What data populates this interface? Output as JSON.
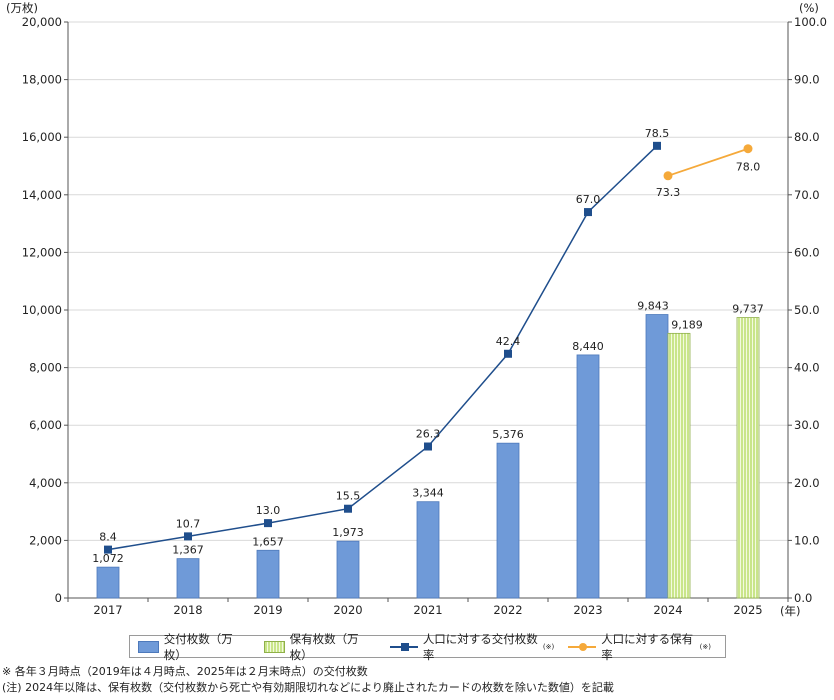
{
  "chart_data": {
    "type": "bar",
    "categories": [
      "2017",
      "2018",
      "2019",
      "2020",
      "2021",
      "2022",
      "2023",
      "2024",
      "2025"
    ],
    "x_unit": "(年)",
    "left_axis": {
      "unit": "(万枚)",
      "min": 0,
      "max": 20000,
      "step": 2000,
      "ticks": [
        "0",
        "2,000",
        "4,000",
        "6,000",
        "8,000",
        "10,000",
        "12,000",
        "14,000",
        "16,000",
        "18,000",
        "20,000"
      ]
    },
    "right_axis": {
      "unit": "(%)",
      "min": 0,
      "max": 100,
      "step": 10,
      "ticks": [
        "0.0",
        "10.0",
        "20.0",
        "30.0",
        "40.0",
        "50.0",
        "60.0",
        "70.0",
        "80.0",
        "90.0",
        "100.0"
      ]
    },
    "series": [
      {
        "name": "交付枚数（万枚）",
        "kind": "bar",
        "axis": "left",
        "color": "#6f9ad8",
        "values": [
          1072,
          1367,
          1657,
          1973,
          3344,
          5376,
          8440,
          9843,
          null
        ],
        "labels": [
          "1,072",
          "1,367",
          "1,657",
          "1,973",
          "3,344",
          "5,376",
          "8,440",
          "9,843",
          ""
        ]
      },
      {
        "name": "保有枚数（万枚）",
        "kind": "bar-hatched",
        "axis": "left",
        "color": "#c9e58a",
        "values": [
          null,
          null,
          null,
          null,
          null,
          null,
          null,
          9189,
          9737
        ],
        "labels": [
          "",
          "",
          "",
          "",
          "",
          "",
          "",
          "9,189",
          "9,737"
        ]
      },
      {
        "name": "人口に対する交付枚数率",
        "note": "(※)",
        "kind": "line",
        "marker": "square",
        "axis": "right",
        "color": "#1f4e8c",
        "values": [
          8.4,
          10.7,
          13.0,
          15.5,
          26.3,
          42.4,
          67.0,
          78.5,
          null
        ],
        "labels": [
          "8.4",
          "10.7",
          "13.0",
          "15.5",
          "26.3",
          "42.4",
          "67.0",
          "78.5",
          ""
        ]
      },
      {
        "name": "人口に対する保有率",
        "note": "(※)",
        "kind": "line",
        "marker": "circle",
        "axis": "right",
        "color": "#f5a93a",
        "values": [
          null,
          null,
          null,
          null,
          null,
          null,
          null,
          73.3,
          78.0
        ],
        "labels": [
          "",
          "",
          "",
          "",
          "",
          "",
          "",
          "73.3",
          "78.0"
        ]
      }
    ],
    "legend_position": "bottom",
    "grid": "horizontal"
  },
  "notes": {
    "line1": "※ 各年３月時点（2019年は４月時点、2025年は２月末時点）の交付枚数",
    "line2": "(注) 2024年以降は、保有枚数（交付枚数から死亡や有効期限切れなどにより廃止されたカードの枚数を除いた数値）を記載"
  }
}
